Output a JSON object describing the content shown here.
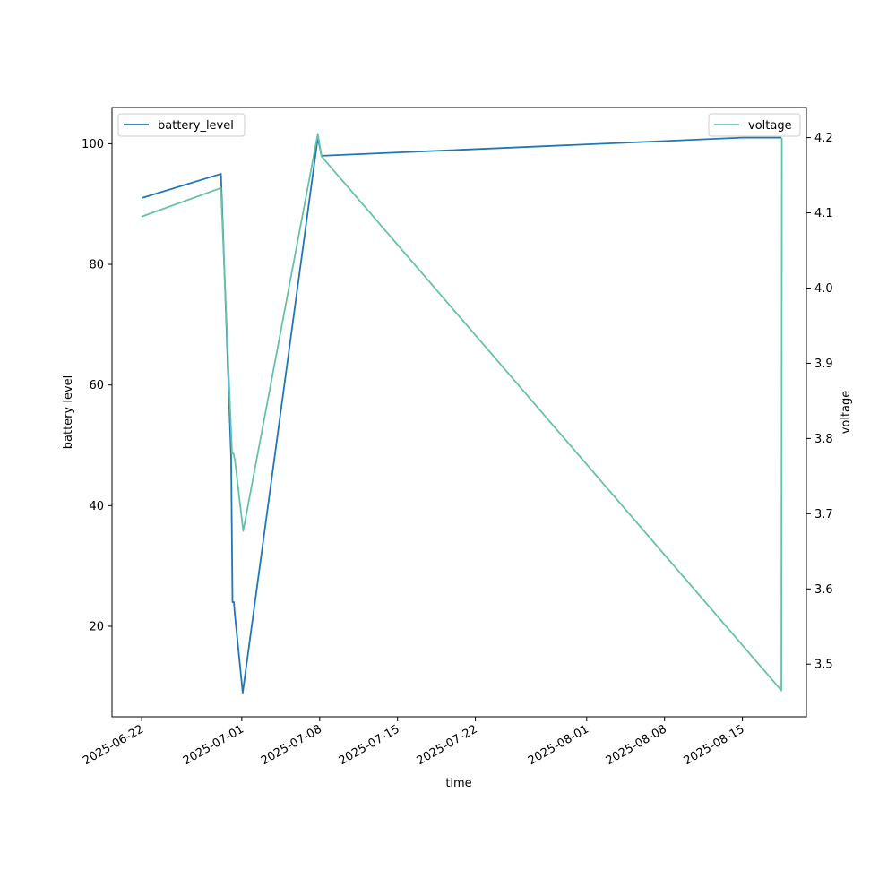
{
  "chart_data": {
    "type": "line",
    "xlabel": "time",
    "ylabel_left": "battery level",
    "ylabel_right": "voltage",
    "x_ticks": [
      "2025-06-22",
      "2025-07-01",
      "2025-07-08",
      "2025-07-15",
      "2025-07-22",
      "2025-08-01",
      "2025-08-08",
      "2025-08-15"
    ],
    "x_range": [
      "2025-06-19T08:00",
      "2025-08-20T18:00"
    ],
    "y_left_ticks": [
      20,
      40,
      60,
      80,
      100
    ],
    "y_left_range": [
      5,
      106
    ],
    "y_right_ticks": [
      3.5,
      3.6,
      3.7,
      3.8,
      3.9,
      4.0,
      4.1,
      4.2
    ],
    "y_right_range": [
      3.43,
      4.24
    ],
    "grid": false,
    "series": [
      {
        "name": "battery_level",
        "axis": "left",
        "color": "#1f77b4",
        "legend_position": "top-left",
        "points": [
          {
            "x": "2025-06-22T00:00",
            "y": 91
          },
          {
            "x": "2025-06-29T03:00",
            "y": 95
          },
          {
            "x": "2025-06-30T01:00",
            "y": 48
          },
          {
            "x": "2025-06-30T04:00",
            "y": 24
          },
          {
            "x": "2025-06-30T07:00",
            "y": 24
          },
          {
            "x": "2025-06-30T09:00",
            "y": 22
          },
          {
            "x": "2025-07-01T02:00",
            "y": 9
          },
          {
            "x": "2025-07-07T20:00",
            "y": 101
          },
          {
            "x": "2025-07-08T04:00",
            "y": 98
          },
          {
            "x": "2025-08-15T00:00",
            "y": 101
          },
          {
            "x": "2025-08-18T12:00",
            "y": 101
          }
        ]
      },
      {
        "name": "voltage",
        "axis": "right",
        "color": "#66c2a5",
        "legend_position": "top-right",
        "points": [
          {
            "x": "2025-06-22T00:00",
            "y": 4.095
          },
          {
            "x": "2025-06-29T03:00",
            "y": 4.133
          },
          {
            "x": "2025-06-30T03:00",
            "y": 3.78
          },
          {
            "x": "2025-06-30T06:00",
            "y": 3.78
          },
          {
            "x": "2025-06-30T09:00",
            "y": 3.772
          },
          {
            "x": "2025-07-01T03:00",
            "y": 3.677
          },
          {
            "x": "2025-07-07T20:00",
            "y": 4.205
          },
          {
            "x": "2025-07-08T04:00",
            "y": 4.175
          },
          {
            "x": "2025-08-18T12:00",
            "y": 3.465
          },
          {
            "x": "2025-08-18T13:00",
            "y": 4.2
          }
        ]
      }
    ]
  }
}
